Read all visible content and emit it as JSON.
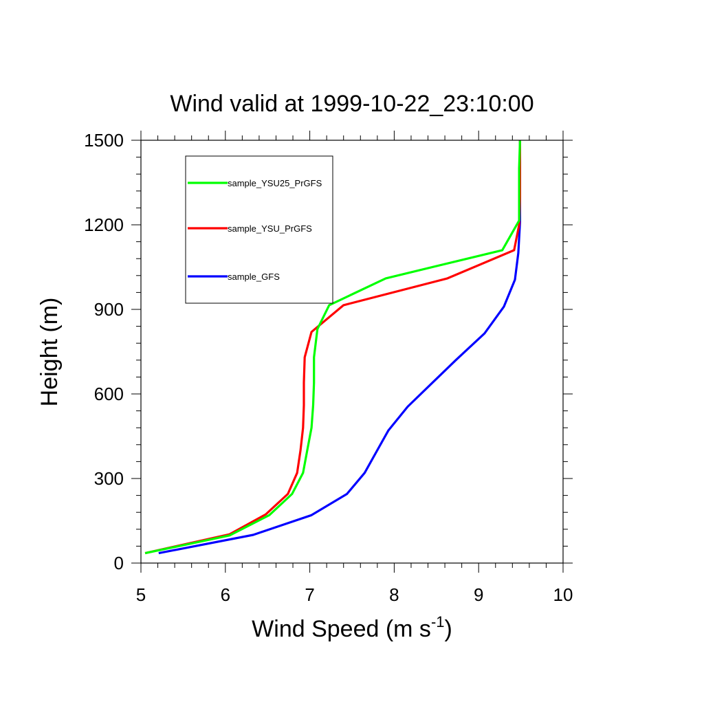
{
  "chart_data": {
    "type": "line",
    "title": "Wind valid at 1999-10-22_23:10:00",
    "xlabel": "Wind Speed (m s",
    "xlabel_superscript": "-1",
    "xlabel_suffix": ")",
    "ylabel": "Height (m)",
    "xlim": [
      5,
      10
    ],
    "ylim": [
      0,
      1500
    ],
    "x_ticks": [
      5,
      6,
      7,
      8,
      9,
      10
    ],
    "x_tick_labels": [
      "5",
      "6",
      "7",
      "8",
      "9",
      "10"
    ],
    "y_ticks": [
      0,
      300,
      600,
      900,
      1200,
      1500
    ],
    "y_tick_labels": [
      "0",
      "300",
      "600",
      "900",
      "1200",
      "1500"
    ],
    "grid": false,
    "legend_position": "top-left",
    "series": [
      {
        "name": "sample_YSU25_PrGFS",
        "color": "#00ff00",
        "points": [
          [
            5.05,
            35
          ],
          [
            6.05,
            98
          ],
          [
            6.52,
            170
          ],
          [
            6.79,
            245
          ],
          [
            6.92,
            320
          ],
          [
            6.97,
            400
          ],
          [
            7.02,
            480
          ],
          [
            7.04,
            560
          ],
          [
            7.05,
            640
          ],
          [
            7.05,
            730
          ],
          [
            7.09,
            830
          ],
          [
            7.23,
            915
          ],
          [
            7.9,
            1010
          ],
          [
            9.28,
            1110
          ],
          [
            9.48,
            1215
          ],
          [
            9.48,
            1300
          ],
          [
            9.48,
            1400
          ],
          [
            9.49,
            1500
          ]
        ]
      },
      {
        "name": "sample_YSU_PrGFS",
        "color": "#ff0000",
        "points": [
          [
            5.05,
            35
          ],
          [
            6.05,
            102
          ],
          [
            6.48,
            173
          ],
          [
            6.74,
            245
          ],
          [
            6.85,
            320
          ],
          [
            6.89,
            400
          ],
          [
            6.92,
            480
          ],
          [
            6.93,
            560
          ],
          [
            6.93,
            640
          ],
          [
            6.94,
            730
          ],
          [
            7.02,
            820
          ],
          [
            7.4,
            915
          ],
          [
            8.63,
            1010
          ],
          [
            9.42,
            1110
          ],
          [
            9.48,
            1200
          ],
          [
            9.49,
            1300
          ],
          [
            9.49,
            1400
          ],
          [
            9.49,
            1500
          ]
        ]
      },
      {
        "name": "sample_GFS",
        "color": "#0000ff",
        "points": [
          [
            5.21,
            35
          ],
          [
            6.33,
            100
          ],
          [
            7.02,
            170
          ],
          [
            7.44,
            245
          ],
          [
            7.65,
            320
          ],
          [
            7.79,
            395
          ],
          [
            7.93,
            470
          ],
          [
            8.16,
            555
          ],
          [
            8.73,
            720
          ],
          [
            9.07,
            815
          ],
          [
            9.3,
            910
          ],
          [
            9.43,
            1005
          ],
          [
            9.47,
            1100
          ],
          [
            9.49,
            1210
          ],
          [
            9.49,
            1300
          ],
          [
            9.49,
            1400
          ],
          [
            9.49,
            1500
          ]
        ]
      }
    ]
  }
}
